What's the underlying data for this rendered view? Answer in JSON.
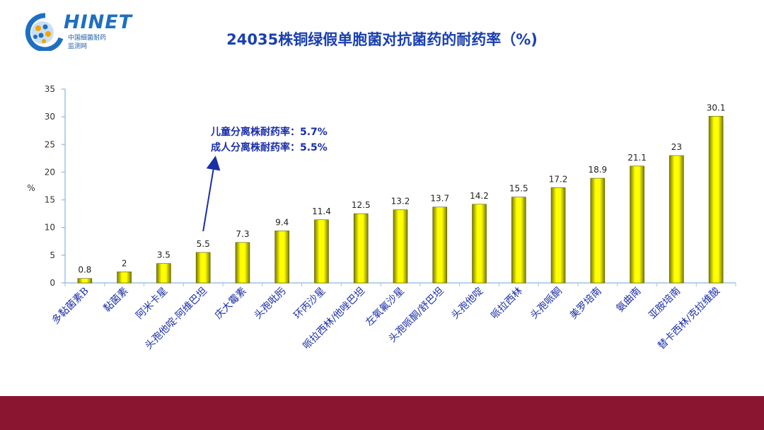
{
  "logo": {
    "wordmark": "HINET",
    "sub_line1": "中国细菌耐药",
    "sub_line2": "监测网"
  },
  "colors": {
    "title": "#1a3fb0",
    "bar_fill": "#ffff00",
    "bar_shadow": "#7a7a00",
    "axis": "#9ec3e6",
    "footer": "#8a1530",
    "annotation": "#1a2ea8"
  },
  "annotation": {
    "line1": "儿童分离株耐药率：5.7%",
    "line2": "成人分离株耐药率：5.5%",
    "points_to_category": "头孢他啶-阿维巴坦"
  },
  "chart_data": {
    "type": "bar",
    "title": "24035株铜绿假单胞菌对抗菌药的耐药率（%)",
    "ylabel": "%",
    "xlabel": "",
    "ylim": [
      0,
      35
    ],
    "yticks": [
      0,
      5,
      10,
      15,
      20,
      25,
      30,
      35
    ],
    "grid": false,
    "categories": [
      "多黏菌素B",
      "黏菌素",
      "阿米卡星",
      "头孢他啶-阿维巴坦",
      "庆大霉素",
      "头孢吡肟",
      "环丙沙星",
      "哌拉西林/他唑巴坦",
      "左氧氟沙星",
      "头孢哌酮/舒巴坦",
      "头孢他啶",
      "哌拉西林",
      "头孢哌酮",
      "美罗培南",
      "氨曲南",
      "亚胺培南",
      "替卡西林/克拉维酸"
    ],
    "values": [
      0.8,
      2,
      3.5,
      5.5,
      7.3,
      9.4,
      11.4,
      12.5,
      13.2,
      13.7,
      14.2,
      15.5,
      17.2,
      18.9,
      21.1,
      23,
      30.1
    ],
    "data_labels": [
      "0.8",
      "2",
      "3.5",
      "5.5",
      "7.3",
      "9.4",
      "11.4",
      "12.5",
      "13.2",
      "13.7",
      "14.2",
      "15.5",
      "17.2",
      "18.9",
      "21.1",
      "23",
      "30.1"
    ]
  }
}
